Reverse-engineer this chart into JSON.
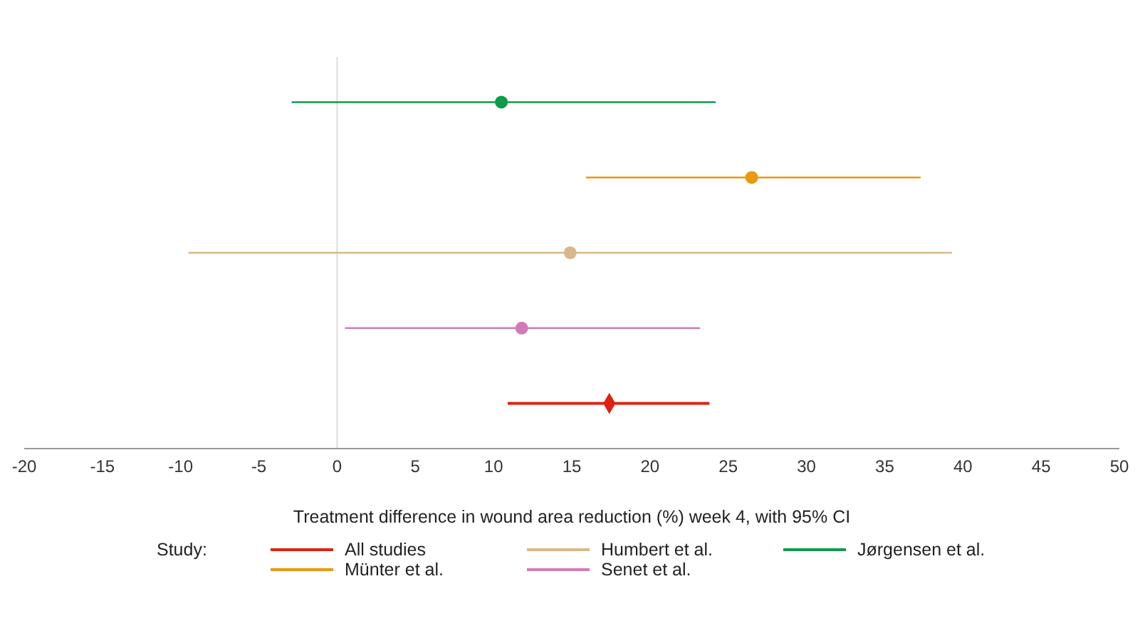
{
  "chart_data": {
    "type": "scatter",
    "orientation": "horizontal",
    "xlabel": "Treatment difference in wound area reduction (%) week 4, with 95% CI",
    "legend_title": "Study:",
    "legend": "bottom",
    "tick_labels": "x",
    "grid": false,
    "categories": [
      null,
      null,
      null,
      null,
      null
    ],
    "xlim": [
      -20,
      50
    ],
    "xticks": [
      -20,
      -15,
      -10,
      -5,
      0,
      5,
      10,
      15,
      20,
      25,
      30,
      35,
      40,
      45,
      50
    ],
    "ref_lines": [
      {
        "axis": "x",
        "value": 0,
        "color": "#e0dcdc"
      }
    ],
    "series": [
      {
        "name": "All studies",
        "color": "#dd2211",
        "marker": "diamond",
        "values": [
          null,
          null,
          null,
          null,
          17.4
        ],
        "errors": [
          null,
          null,
          null,
          null,
          [
            10.9,
            23.8
          ]
        ]
      },
      {
        "name": "Münter et al.",
        "color": "#e89a10",
        "marker": "circle",
        "values": [
          null,
          26.5,
          null,
          null,
          null
        ],
        "errors": [
          null,
          [
            15.9,
            37.3
          ],
          null,
          null,
          null
        ]
      },
      {
        "name": "Humbert et al.",
        "color": "#d8b88a",
        "marker": "circle",
        "values": [
          null,
          null,
          14.9,
          null,
          null
        ],
        "errors": [
          null,
          null,
          [
            -9.5,
            39.3
          ],
          null,
          null
        ]
      },
      {
        "name": "Senet et al.",
        "color": "#d27ab8",
        "marker": "circle",
        "values": [
          null,
          null,
          null,
          11.8,
          null
        ],
        "errors": [
          null,
          null,
          null,
          [
            0.5,
            23.2
          ],
          null
        ]
      },
      {
        "name": "Jørgensen et al.",
        "color": "#0f9a4a",
        "marker": "circle",
        "values": [
          10.5,
          null,
          null,
          null,
          null
        ],
        "errors": [
          [
            -2.9,
            24.2
          ],
          null,
          null,
          null,
          null
        ]
      }
    ]
  }
}
